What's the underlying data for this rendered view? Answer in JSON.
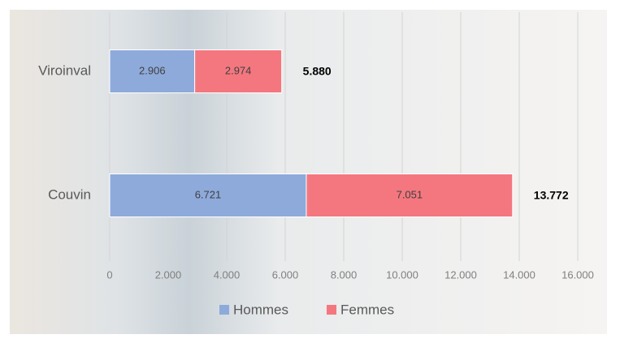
{
  "chart_data": {
    "type": "stacked-barh",
    "categories": [
      "Viroinval",
      "Couvin"
    ],
    "series": [
      {
        "name": "Hommes",
        "color": "#8eaadb",
        "values": [
          2906,
          6721
        ],
        "value_labels": [
          "2.906",
          "6.721"
        ]
      },
      {
        "name": "Femmes",
        "color": "#f4777f",
        "values": [
          2974,
          7051
        ],
        "value_labels": [
          "2.974",
          "7.051"
        ]
      }
    ],
    "totals": {
      "values": [
        5880,
        13772
      ],
      "value_labels": [
        "5.880",
        "13.772"
      ]
    },
    "xlim": [
      0,
      16000
    ],
    "xticks": [
      0,
      {
        "value": 2000,
        "label": "2.000"
      },
      {
        "value": 4000,
        "label": "4.000"
      },
      {
        "value": 6000,
        "label": "6.000"
      },
      {
        "value": 8000,
        "label": "8.000"
      },
      {
        "value": 10000,
        "label": "10.000"
      },
      {
        "value": 12000,
        "label": "12.000"
      },
      {
        "value": 14000,
        "label": "14.000"
      },
      {
        "value": 16000,
        "label": "16.000"
      }
    ],
    "grid": true,
    "legend": "bottom"
  }
}
